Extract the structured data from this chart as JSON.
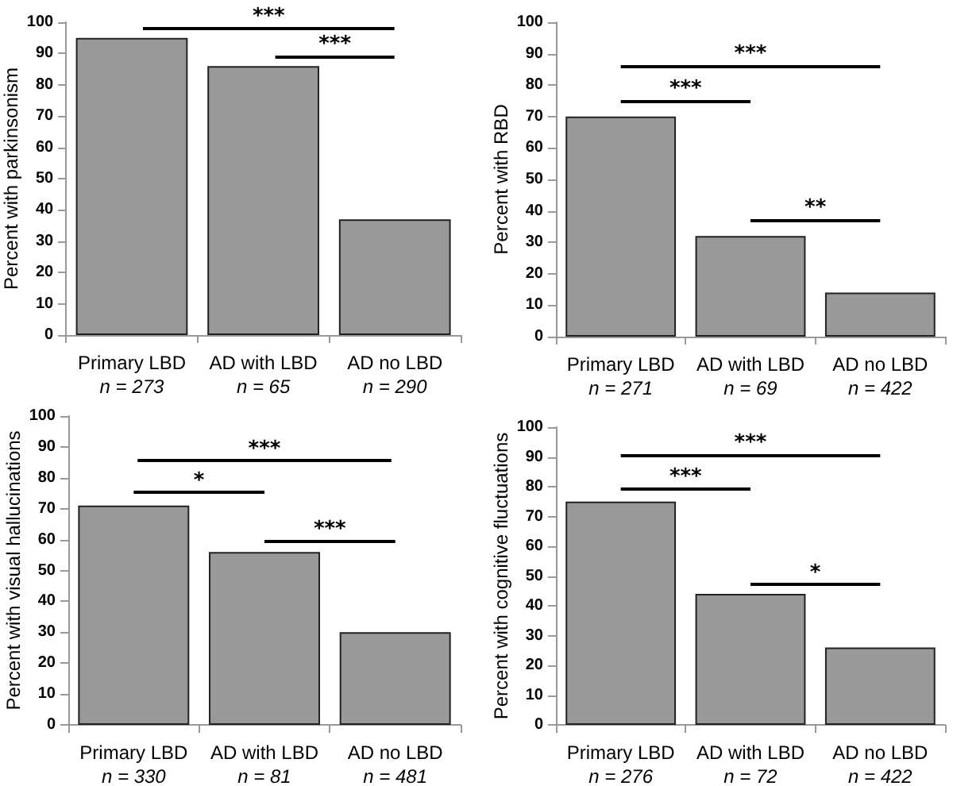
{
  "chart_data": [
    {
      "type": "bar",
      "ylabel": "Percent with parkinsonism",
      "categories": [
        "Primary LBD\nn = 273",
        "AD with LBD\nn = 65",
        "AD no LBD\nn = 290"
      ],
      "values": [
        95,
        86,
        37
      ],
      "color": "#999999",
      "ylim": [
        0,
        100
      ],
      "yticks": [
        0,
        10,
        20,
        30,
        40,
        50,
        60,
        70,
        80,
        90,
        100
      ],
      "annotations": [
        "***",
        "***"
      ]
    },
    {
      "type": "bar",
      "ylabel": "Percent with RBD",
      "categories": [
        "Primary LBD\nn = 271",
        "AD with LBD\nn = 69",
        "AD no LBD\nn = 422"
      ],
      "values": [
        70,
        32,
        14
      ],
      "color": "#999999",
      "ylim": [
        0,
        100
      ],
      "yticks": [
        0,
        10,
        20,
        30,
        40,
        50,
        60,
        70,
        80,
        90,
        100
      ],
      "annotations": [
        "***",
        "***",
        "**"
      ]
    },
    {
      "type": "bar",
      "ylabel": "Percent with visual hallucinations",
      "categories": [
        "Primary LBD\nn = 330",
        "AD with LBD\nn = 81",
        "AD no LBD\nn = 481"
      ],
      "values": [
        71,
        56,
        30
      ],
      "color": "#999999",
      "ylim": [
        0,
        100
      ],
      "yticks": [
        0,
        10,
        20,
        30,
        40,
        50,
        60,
        70,
        80,
        90,
        100
      ],
      "annotations": [
        "***",
        "*",
        "***"
      ]
    },
    {
      "type": "bar",
      "ylabel": "Percent with cognitive fluctuations",
      "categories": [
        "Primary LBD\nn = 276",
        "AD with LBD\nn = 72",
        "AD no LBD\nn = 422"
      ],
      "values": [
        75,
        44,
        26
      ],
      "color": "#999999",
      "ylim": [
        0,
        100
      ],
      "yticks": [
        0,
        10,
        20,
        30,
        40,
        50,
        60,
        70,
        80,
        90,
        100
      ],
      "annotations": [
        "***",
        "***",
        "*"
      ]
    }
  ]
}
